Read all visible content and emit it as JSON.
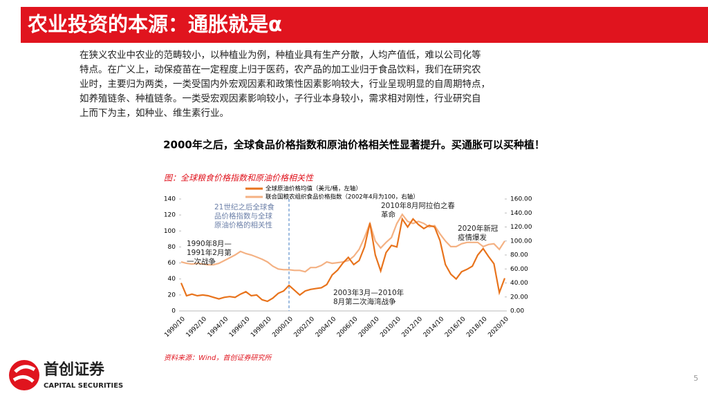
{
  "header": {
    "title": "农业投资的本源：通胀就是α"
  },
  "body": {
    "paragraph": [
      "在狭义农业中农业的范畴较小，以种植业为例，种植业具有生产分散，人均产值低，难以公司化等",
      "特点。在广义上，动保疫苗在一定程度上归于医药，农产品的加工业归于食品饮料，我们在研究农",
      "业时，主要归为两类，一类受国内外宏观因素和政策性因素影响较大，行业呈现明显的自周期特点，",
      "如养殖链条、种植链条。一类受宏观因素影响较小，子行业本身较小，需求相对刚性，行业研究自",
      "上而下为主，如种业、维生素行业。"
    ],
    "highlight": "2000年之后，全球食品价格指数和原油价格相关性显著提升。买通胀可以买种植！"
  },
  "chart_data": {
    "type": "line",
    "title": "图：全球粮食价格指数和原油价格相关性",
    "categories": [
      "1990/10",
      null,
      null,
      null,
      "1992/10",
      null,
      null,
      null,
      "1994/10",
      null,
      null,
      null,
      "1996/10",
      null,
      null,
      null,
      "1998/10",
      null,
      null,
      null,
      "2000/10",
      null,
      null,
      null,
      "2002/10",
      null,
      null,
      null,
      "2004/10",
      null,
      null,
      null,
      "2006/10",
      null,
      null,
      null,
      "2008/10",
      null,
      null,
      null,
      "2010/10",
      null,
      null,
      null,
      "2012/10",
      null,
      null,
      null,
      "2014/10",
      null,
      null,
      null,
      "2016/10",
      null,
      null,
      null,
      "2018/10",
      null,
      null,
      null,
      "2020/10"
    ],
    "series": [
      {
        "name": "全球原油价格均值（美元/桶，左轴）",
        "color": "#e8731c",
        "values": [
          35,
          19,
          21,
          19,
          20,
          19,
          17,
          15,
          17,
          18,
          17,
          21,
          24,
          19,
          20,
          14,
          12,
          16,
          22,
          25,
          32,
          26,
          20,
          25,
          27,
          28,
          29,
          33,
          45,
          51,
          60,
          67,
          58,
          63,
          80,
          110,
          70,
          50,
          73,
          82,
          80,
          115,
          105,
          115,
          108,
          103,
          107,
          105,
          88,
          58,
          46,
          40,
          49,
          52,
          56,
          70,
          78,
          68,
          59,
          23,
          41
        ]
      },
      {
        "name": "联合国粮农组织食品价格指数（2002年4月为100，右轴）",
        "color": "#f4b183",
        "axis": "y2",
        "values": [
          70,
          68,
          67,
          68,
          67,
          66,
          66,
          68,
          72,
          76,
          80,
          85,
          82,
          80,
          77,
          74,
          70,
          64,
          60,
          59,
          59,
          58,
          58,
          56,
          62,
          62,
          65,
          70,
          68,
          69,
          70,
          72,
          78,
          88,
          105,
          125,
          100,
          90,
          98,
          105,
          125,
          138,
          128,
          125,
          128,
          125,
          120,
          122,
          110,
          100,
          92,
          92,
          96,
          98,
          98,
          98,
          92,
          95,
          96,
          88,
          100
        ]
      }
    ],
    "ylim": [
      0,
      140
    ],
    "yticks": [
      0,
      20,
      40,
      60,
      80,
      100,
      120,
      140
    ],
    "y2lim": [
      0,
      160
    ],
    "y2ticks": [
      {
        "value": 0,
        "label": "0.00"
      },
      {
        "value": 20,
        "label": "20.00"
      },
      {
        "value": 40,
        "label": "40.00"
      },
      {
        "value": 60,
        "label": "60.00"
      },
      {
        "value": 80,
        "label": "80.00"
      },
      {
        "value": 100,
        "label": "100.00"
      },
      {
        "value": 120,
        "label": "120.00"
      },
      {
        "value": 140,
        "label": "140.00"
      },
      {
        "value": 160,
        "label": "160.00"
      }
    ],
    "annotations": [
      [
        "21世纪之后全球食",
        "品价格指数与全球",
        "原油价格的相关性"
      ],
      [
        "1990年8月—",
        "1991年2月第",
        "一次战争"
      ],
      [
        "2010年8月阿拉伯之春",
        "革命"
      ],
      [
        "2020年新冠",
        "疫情爆发"
      ],
      [
        "2003年3月—2010年",
        "8月第二次海湾战争"
      ]
    ],
    "source": "资料来源：Wind，首创证券研究所"
  },
  "footer": {
    "brand": "首创证券",
    "brand_en": "CAPITAL SECURITIES",
    "page": "5"
  }
}
